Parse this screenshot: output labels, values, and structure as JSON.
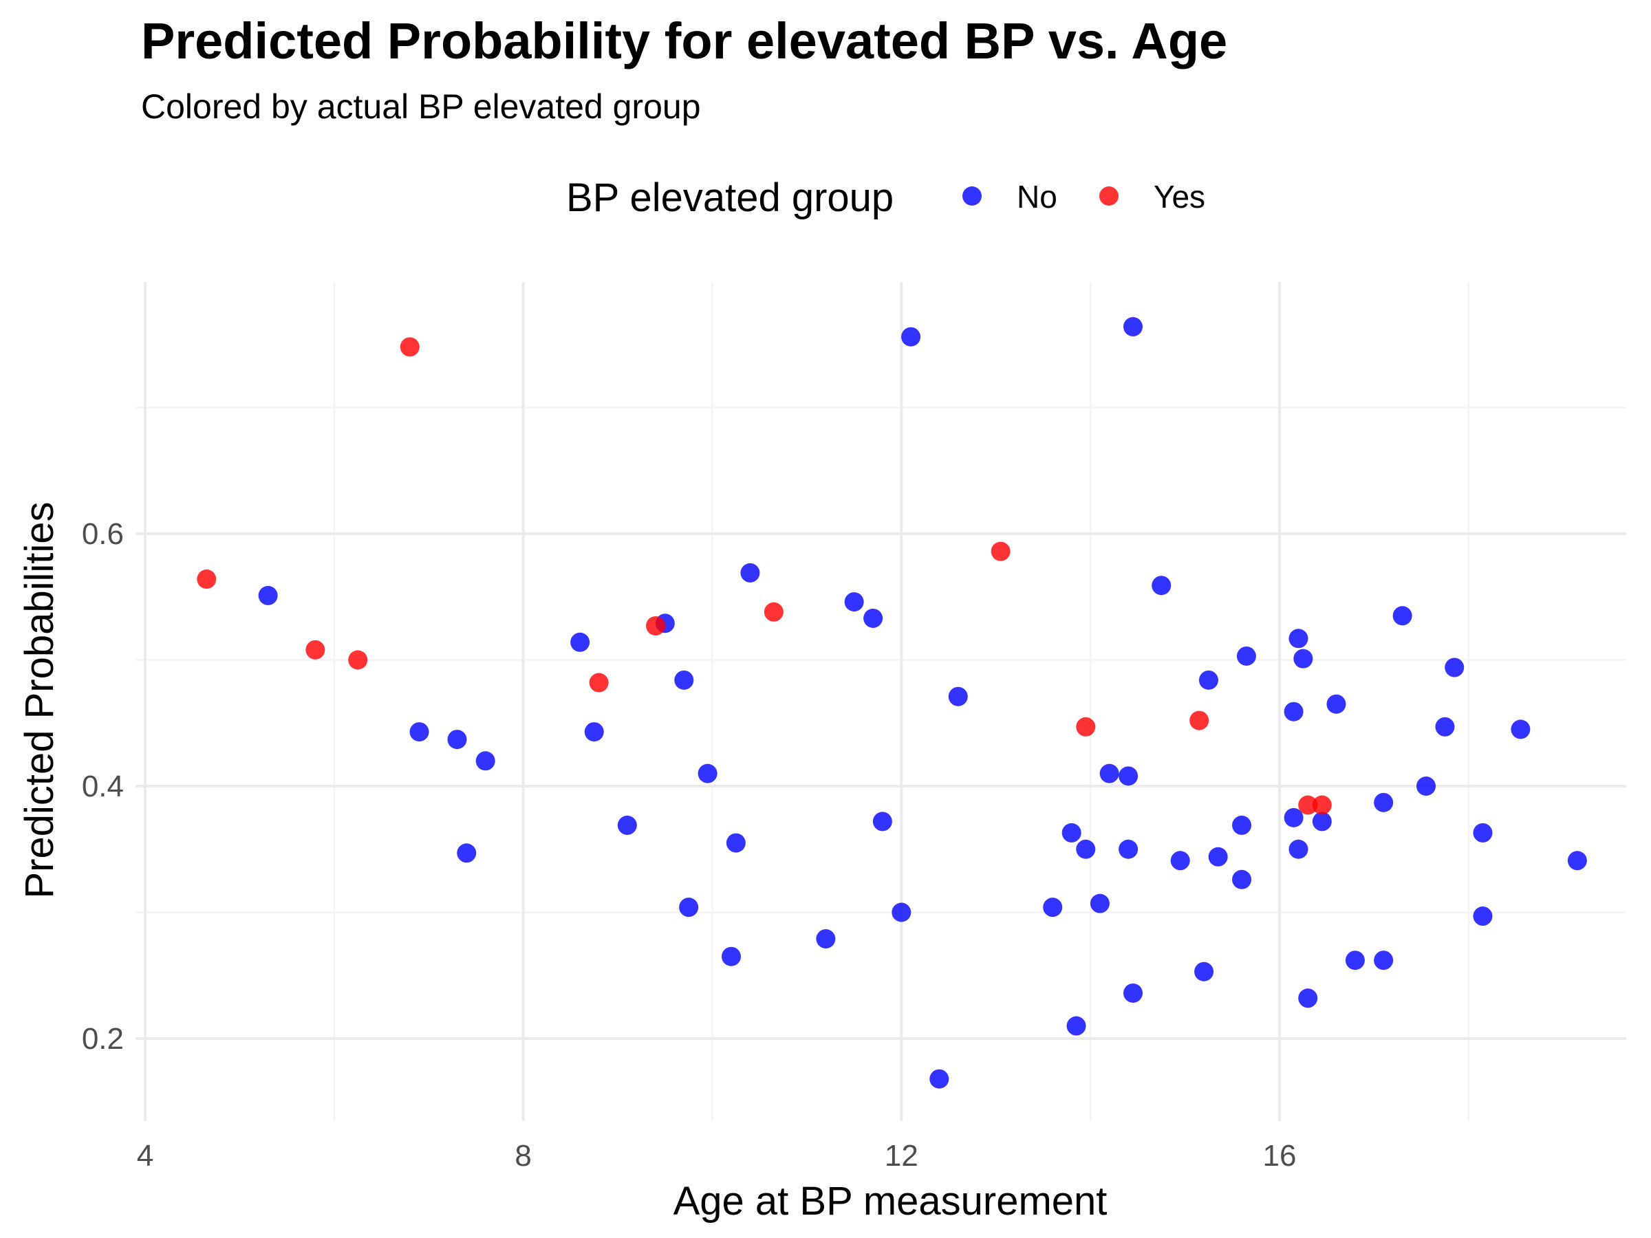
{
  "chart_data": {
    "type": "scatter",
    "title": "Predicted Probability for elevated BP vs. Age",
    "subtitle": "Colored by actual BP elevated group",
    "xlabel": "Age at BP measurement",
    "ylabel": "Predicted Probabilities",
    "xlim": [
      4,
      19.7
    ],
    "ylim": [
      0.15,
      0.8
    ],
    "x_ticks": [
      4,
      8,
      12,
      16
    ],
    "x_tick_labels": [
      "4",
      "8",
      "12",
      "16"
    ],
    "y_ticks": [
      0.2,
      0.4,
      0.6
    ],
    "y_tick_labels": [
      "0.2",
      "0.4",
      "0.6"
    ],
    "grid": true,
    "legend": {
      "title": "BP elevated group",
      "placement": "top"
    },
    "series": [
      {
        "name": "No",
        "color": "#0000ff",
        "points": [
          [
            5.3,
            0.551
          ],
          [
            6.9,
            0.443
          ],
          [
            7.3,
            0.437
          ],
          [
            7.4,
            0.347
          ],
          [
            7.6,
            0.42
          ],
          [
            8.6,
            0.514
          ],
          [
            8.75,
            0.443
          ],
          [
            9.1,
            0.369
          ],
          [
            9.5,
            0.529
          ],
          [
            9.7,
            0.484
          ],
          [
            9.75,
            0.304
          ],
          [
            9.95,
            0.41
          ],
          [
            10.2,
            0.265
          ],
          [
            10.25,
            0.355
          ],
          [
            10.4,
            0.569
          ],
          [
            11.2,
            0.279
          ],
          [
            11.5,
            0.546
          ],
          [
            11.7,
            0.533
          ],
          [
            11.8,
            0.372
          ],
          [
            12.0,
            0.3
          ],
          [
            12.1,
            0.756
          ],
          [
            12.4,
            0.168
          ],
          [
            12.6,
            0.471
          ],
          [
            13.6,
            0.304
          ],
          [
            13.8,
            0.363
          ],
          [
            13.85,
            0.21
          ],
          [
            13.95,
            0.35
          ],
          [
            14.1,
            0.307
          ],
          [
            14.2,
            0.41
          ],
          [
            14.4,
            0.35
          ],
          [
            14.4,
            0.408
          ],
          [
            14.45,
            0.236
          ],
          [
            14.45,
            0.764
          ],
          [
            14.75,
            0.559
          ],
          [
            14.95,
            0.341
          ],
          [
            15.2,
            0.253
          ],
          [
            15.25,
            0.484
          ],
          [
            15.35,
            0.344
          ],
          [
            15.6,
            0.369
          ],
          [
            15.6,
            0.326
          ],
          [
            15.65,
            0.503
          ],
          [
            16.15,
            0.459
          ],
          [
            16.15,
            0.375
          ],
          [
            16.2,
            0.517
          ],
          [
            16.2,
            0.35
          ],
          [
            16.25,
            0.501
          ],
          [
            16.3,
            0.232
          ],
          [
            16.45,
            0.372
          ],
          [
            16.6,
            0.465
          ],
          [
            16.8,
            0.262
          ],
          [
            17.1,
            0.262
          ],
          [
            17.1,
            0.387
          ],
          [
            17.3,
            0.535
          ],
          [
            17.55,
            0.4
          ],
          [
            17.75,
            0.447
          ],
          [
            17.85,
            0.494
          ],
          [
            18.15,
            0.363
          ],
          [
            18.15,
            0.297
          ],
          [
            18.55,
            0.445
          ],
          [
            19.15,
            0.341
          ]
        ]
      },
      {
        "name": "Yes",
        "color": "#ff0000",
        "points": [
          [
            4.65,
            0.564
          ],
          [
            5.8,
            0.508
          ],
          [
            6.25,
            0.5
          ],
          [
            6.8,
            0.748
          ],
          [
            8.8,
            0.482
          ],
          [
            9.4,
            0.527
          ],
          [
            10.65,
            0.538
          ],
          [
            13.05,
            0.586
          ],
          [
            13.95,
            0.447
          ],
          [
            15.15,
            0.452
          ],
          [
            16.3,
            0.385
          ],
          [
            16.45,
            0.385
          ]
        ]
      }
    ]
  }
}
